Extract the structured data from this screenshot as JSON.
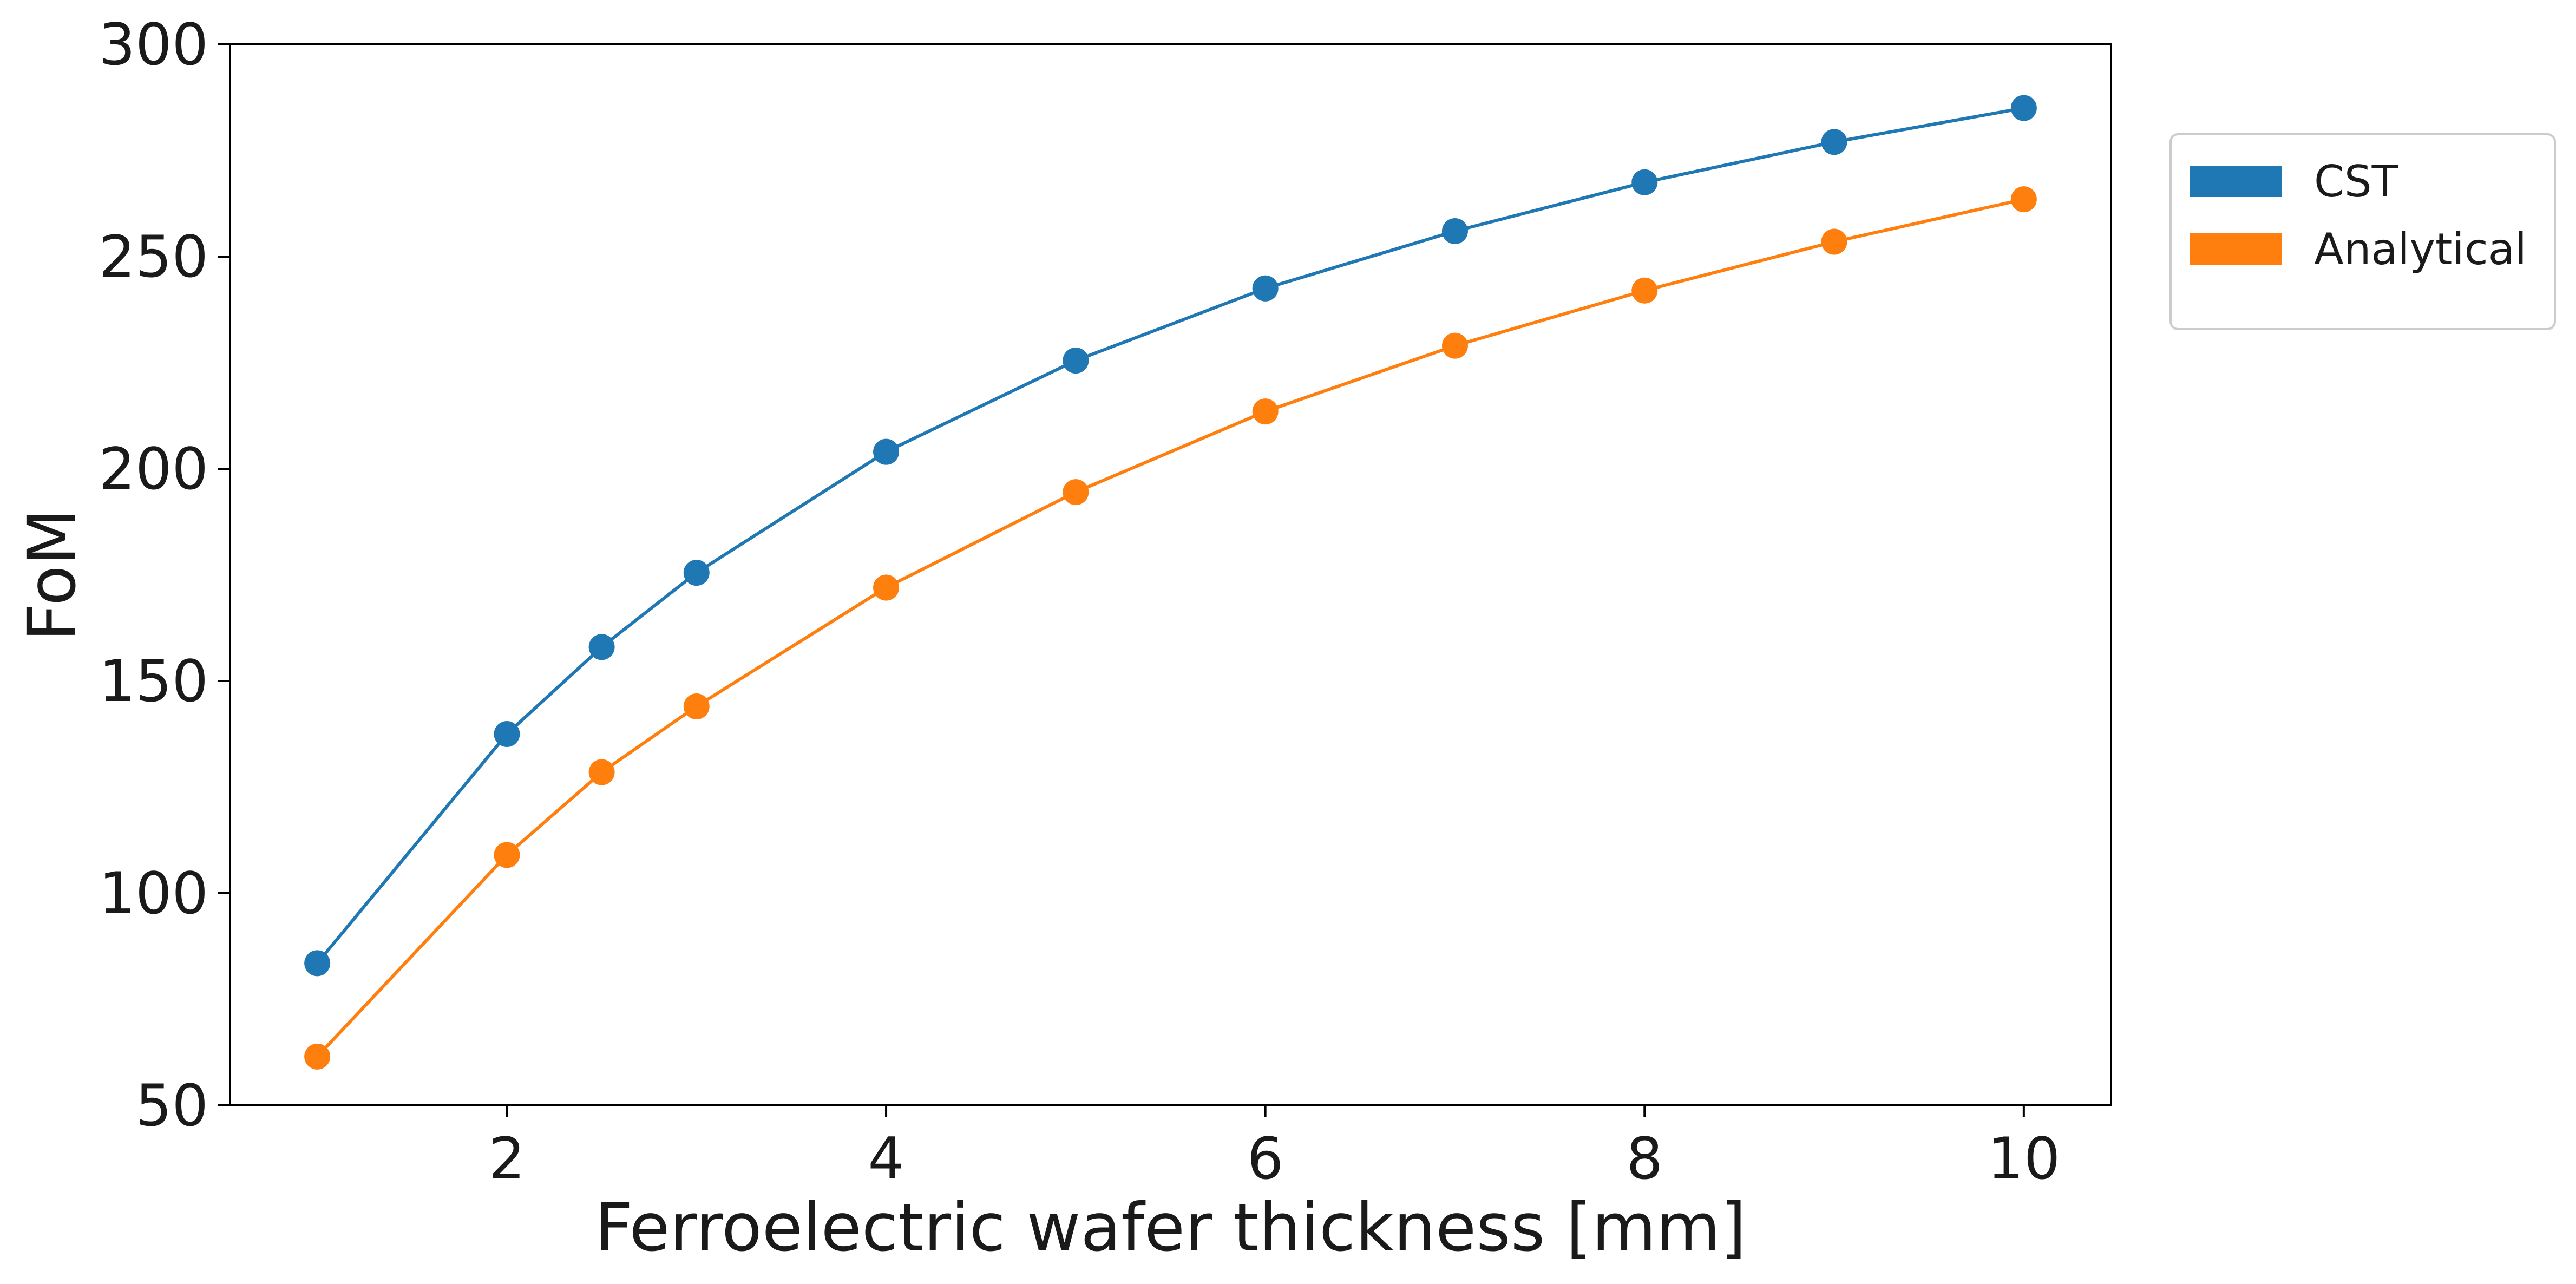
{
  "chart_data": {
    "type": "line",
    "title": "",
    "xlabel": "Ferroelectric wafer thickness [mm]",
    "ylabel": "FoM",
    "x": [
      1,
      2,
      2.5,
      3,
      4,
      5,
      6,
      7,
      8,
      9,
      10
    ],
    "xlim": [
      0.54,
      10.46
    ],
    "ylim": [
      50,
      300
    ],
    "xticks": [
      2,
      4,
      6,
      8,
      10
    ],
    "xtick_labels": [
      "2",
      "4",
      "6",
      "8",
      "10"
    ],
    "yticks": [
      50,
      100,
      150,
      200,
      250,
      300
    ],
    "ytick_labels": [
      "50",
      "100",
      "150",
      "200",
      "250",
      "300"
    ],
    "grid": false,
    "legend_position": "outside-right-top",
    "series": [
      {
        "name": "CST",
        "color": "#1f77b4",
        "values": [
          83.5,
          137.5,
          158,
          175.5,
          204,
          225.5,
          242.5,
          256,
          267.5,
          277,
          285
        ]
      },
      {
        "name": "Analytical",
        "color": "#ff7f0e",
        "values": [
          61.5,
          109,
          128.5,
          144,
          172,
          194.5,
          213.5,
          229,
          242,
          253.5,
          263.5
        ]
      }
    ]
  }
}
